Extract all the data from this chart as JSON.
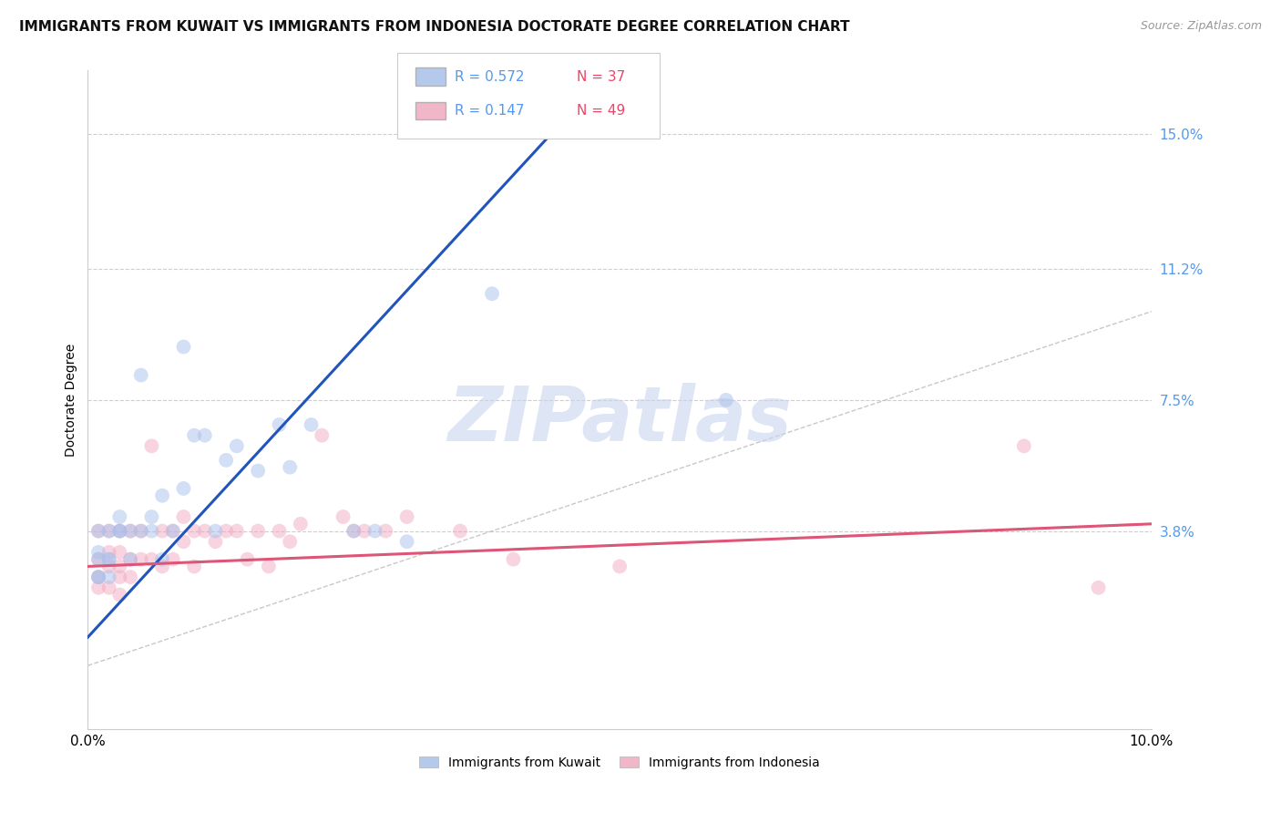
{
  "title": "IMMIGRANTS FROM KUWAIT VS IMMIGRANTS FROM INDONESIA DOCTORATE DEGREE CORRELATION CHART",
  "source": "Source: ZipAtlas.com",
  "ylabel": "Doctorate Degree",
  "xlim": [
    0.0,
    0.1
  ],
  "ylim": [
    -0.018,
    0.168
  ],
  "ytick_labels": [
    "3.8%",
    "7.5%",
    "11.2%",
    "15.0%"
  ],
  "ytick_positions": [
    0.038,
    0.075,
    0.112,
    0.15
  ],
  "kuwait_R": 0.572,
  "kuwait_N": 37,
  "indonesia_R": 0.147,
  "indonesia_N": 49,
  "kuwait_color": "#a8c0ea",
  "indonesia_color": "#f0aac0",
  "kuwait_line_color": "#2255bb",
  "indonesia_line_color": "#dd5577",
  "tick_color": "#5599ee",
  "background_color": "#ffffff",
  "grid_color": "#ccccdd",
  "watermark_color": "#c8d4ee",
  "diagonal_line_color": "#bbbbbb",
  "kuwait_line_x0": 0.0,
  "kuwait_line_y0": 0.008,
  "kuwait_line_x1": 0.038,
  "kuwait_line_y1": 0.132,
  "indonesia_line_x0": 0.0,
  "indonesia_line_y0": 0.028,
  "indonesia_line_x1": 0.1,
  "indonesia_line_y1": 0.04,
  "kuwait_x": [
    0.001,
    0.001,
    0.001,
    0.001,
    0.001,
    0.002,
    0.002,
    0.002,
    0.002,
    0.003,
    0.003,
    0.003,
    0.004,
    0.004,
    0.005,
    0.005,
    0.006,
    0.006,
    0.007,
    0.007,
    0.008,
    0.009,
    0.009,
    0.01,
    0.011,
    0.012,
    0.013,
    0.014,
    0.016,
    0.018,
    0.019,
    0.021,
    0.025,
    0.027,
    0.03,
    0.038,
    0.06
  ],
  "kuwait_y": [
    0.03,
    0.025,
    0.025,
    0.032,
    0.038,
    0.038,
    0.03,
    0.025,
    0.03,
    0.038,
    0.038,
    0.042,
    0.038,
    0.03,
    0.082,
    0.038,
    0.038,
    0.042,
    0.048,
    0.03,
    0.038,
    0.09,
    0.05,
    0.065,
    0.065,
    0.038,
    0.058,
    0.062,
    0.055,
    0.068,
    0.056,
    0.068,
    0.038,
    0.038,
    0.035,
    0.105,
    0.075
  ],
  "indonesia_x": [
    0.001,
    0.001,
    0.001,
    0.001,
    0.002,
    0.002,
    0.002,
    0.002,
    0.003,
    0.003,
    0.003,
    0.003,
    0.003,
    0.004,
    0.004,
    0.004,
    0.005,
    0.005,
    0.006,
    0.006,
    0.007,
    0.007,
    0.008,
    0.008,
    0.009,
    0.009,
    0.01,
    0.01,
    0.011,
    0.012,
    0.013,
    0.014,
    0.015,
    0.016,
    0.017,
    0.018,
    0.019,
    0.02,
    0.022,
    0.024,
    0.025,
    0.026,
    0.028,
    0.03,
    0.035,
    0.04,
    0.05,
    0.088,
    0.095
  ],
  "indonesia_y": [
    0.038,
    0.03,
    0.025,
    0.022,
    0.038,
    0.032,
    0.028,
    0.022,
    0.038,
    0.032,
    0.028,
    0.025,
    0.02,
    0.038,
    0.03,
    0.025,
    0.038,
    0.03,
    0.062,
    0.03,
    0.038,
    0.028,
    0.038,
    0.03,
    0.042,
    0.035,
    0.038,
    0.028,
    0.038,
    0.035,
    0.038,
    0.038,
    0.03,
    0.038,
    0.028,
    0.038,
    0.035,
    0.04,
    0.065,
    0.042,
    0.038,
    0.038,
    0.038,
    0.042,
    0.038,
    0.03,
    0.028,
    0.062,
    0.022
  ],
  "marker_size": 130,
  "marker_alpha": 0.5,
  "title_fontsize": 11,
  "axis_label_fontsize": 10,
  "tick_fontsize": 11
}
